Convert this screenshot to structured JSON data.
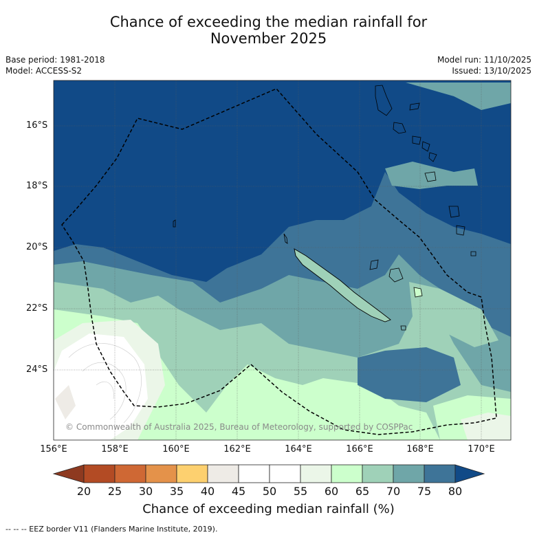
{
  "title_line1": "Chance of exceeding the median rainfall for",
  "title_line2": "November 2025",
  "base_period": "Base period: 1981-2018",
  "model": "Model: ACCESS-S2",
  "model_run": "Model run: 11/10/2025",
  "issued": "Issued: 13/10/2025",
  "lat_labels": [
    "16°S",
    "18°S",
    "20°S",
    "22°S",
    "24°S"
  ],
  "lon_labels": [
    "156°E",
    "158°E",
    "160°E",
    "162°E",
    "164°E",
    "166°E",
    "168°E",
    "170°E"
  ],
  "copyright": "© Commonwealth of Australia 2025, Bureau of Meteorology, supported by COSPPac",
  "colorbar": {
    "ticks": [
      "20",
      "25",
      "30",
      "35",
      "40",
      "45",
      "50",
      "55",
      "60",
      "65",
      "70",
      "75",
      "80"
    ],
    "colors": [
      "#8e3a20",
      "#b34b24",
      "#cf6834",
      "#e4924a",
      "#fdd06f",
      "#eeebe6",
      "#ffffff",
      "#ffffff",
      "#ebf6e8",
      "#ccffcc",
      "#9fd1b8",
      "#6fa6a8",
      "#3e7498",
      "#114a87"
    ],
    "title": "Chance of exceeding median rainfall (%)"
  },
  "footnote": "--  --  -- EEZ border V11 (Flanders Marine Institute, 2019).",
  "colors": {
    "c80": "#114a87",
    "c75": "#3e7498",
    "c70": "#6fa6a8",
    "c65": "#9fd1b8",
    "c60": "#ccffcc",
    "c55": "#ebf6e8",
    "c45": "#eeebe6"
  }
}
